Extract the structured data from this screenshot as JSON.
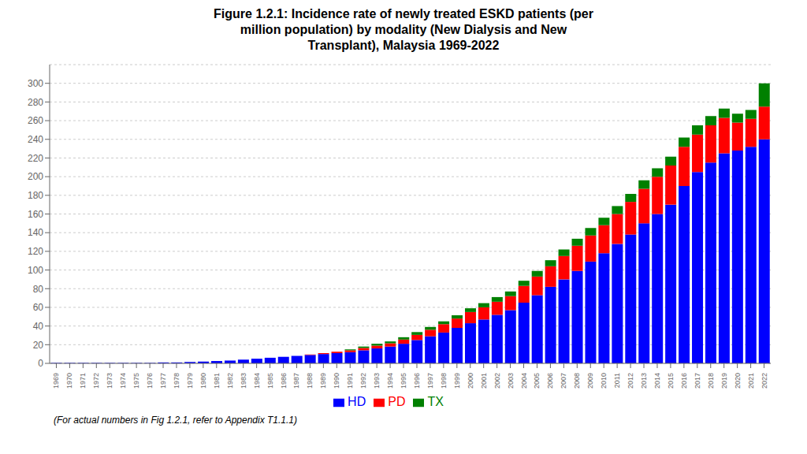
{
  "chart_data": {
    "type": "bar",
    "title": "Figure 1.2.1: Incidence rate of newly treated ESKD patients (per\nmillion population) by modality (New Dialysis and New\nTransplant), Malaysia 1969-2022",
    "annotations": [
      "(For actual numbers in Fig 1.2.1, refer to Appendix T1.1.1)"
    ],
    "categories": [
      1969,
      1970,
      1971,
      1972,
      1973,
      1974,
      1975,
      1976,
      1977,
      1978,
      1979,
      1980,
      1981,
      1982,
      1983,
      1984,
      1985,
      1986,
      1987,
      1988,
      1989,
      1990,
      1991,
      1992,
      1993,
      1994,
      1995,
      1996,
      1997,
      1998,
      1999,
      2000,
      2001,
      2002,
      2003,
      2004,
      2005,
      2006,
      2007,
      2008,
      2009,
      2010,
      2011,
      2012,
      2013,
      2014,
      2015,
      2016,
      2017,
      2018,
      2019,
      2020,
      2021,
      2022
    ],
    "series": [
      {
        "name": "HD",
        "color": "#0000FF",
        "values": [
          0.5,
          0.5,
          0.5,
          0.5,
          0.5,
          0.5,
          0.5,
          0.5,
          1.0,
          1.0,
          1.5,
          2.0,
          2.5,
          3.0,
          4.0,
          5.0,
          6.0,
          7.0,
          8.0,
          9.0,
          10.0,
          11.0,
          12.0,
          14.0,
          16.0,
          18.0,
          21.0,
          25.0,
          29.0,
          33.0,
          38.0,
          43.0,
          47.0,
          52.0,
          57.0,
          65.0,
          73.0,
          82.0,
          90.0,
          99.0,
          109.0,
          118.0,
          128.0,
          138.0,
          150.0,
          160.0,
          170.0,
          190.0,
          205.0,
          215.0,
          225.0,
          228.0,
          232.0,
          240.0
        ]
      },
      {
        "name": "PD",
        "color": "#FF0000",
        "values": [
          0.0,
          0.0,
          0.0,
          0.0,
          0.0,
          0.0,
          0.0,
          0.0,
          0.0,
          0.0,
          0.0,
          0.0,
          0.0,
          0.0,
          0.0,
          0.0,
          0.0,
          0.0,
          0.0,
          0.5,
          1.0,
          1.5,
          2.0,
          2.5,
          3.0,
          3.5,
          4.5,
          5.5,
          7.0,
          9.0,
          10.0,
          12.0,
          13.0,
          14.0,
          15.0,
          18.0,
          20.0,
          22.0,
          25.0,
          27.0,
          28.0,
          30.0,
          32.0,
          35.0,
          37.0,
          40.0,
          42.0,
          42.0,
          40.0,
          40.0,
          38.0,
          30.0,
          30.0,
          35.0
        ]
      },
      {
        "name": "TX",
        "color": "#008000",
        "values": [
          0.0,
          0.0,
          0.0,
          0.0,
          0.0,
          0.0,
          0.0,
          0.0,
          0.0,
          0.0,
          0.0,
          0.0,
          0.0,
          0.0,
          0.0,
          0.0,
          0.0,
          0.0,
          0.0,
          0.0,
          0.0,
          0.0,
          1.0,
          1.5,
          2.0,
          2.0,
          2.5,
          3.0,
          3.0,
          3.0,
          3.5,
          4.0,
          4.5,
          5.0,
          5.0,
          5.5,
          6.0,
          6.5,
          7.0,
          7.5,
          8.0,
          8.0,
          8.5,
          8.5,
          9.0,
          9.0,
          9.5,
          10.0,
          10.0,
          10.0,
          10.0,
          9.5,
          9.5,
          25.0
        ]
      }
    ],
    "stacked": true,
    "ylim": [
      0,
      320
    ],
    "yticks": [
      0,
      20,
      40,
      60,
      80,
      100,
      120,
      140,
      160,
      180,
      200,
      220,
      240,
      260,
      280,
      300
    ],
    "grid": true,
    "legend": "bottom"
  }
}
